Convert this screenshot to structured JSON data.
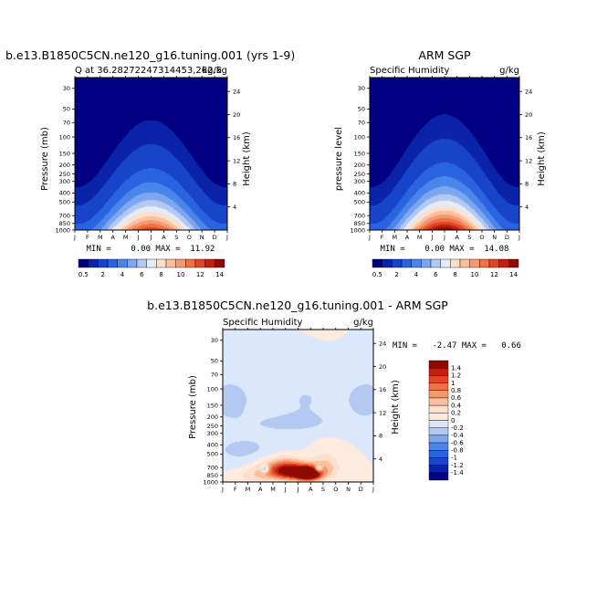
{
  "panels": [
    {
      "left_title": "b.e13.B1850C5CN.ne120_g16.tuning.001 (yrs 1-9)",
      "center_title": "",
      "sub_left": "Q at 36.28272247314453,262.5",
      "sub_right": "kg/kg",
      "y_label": "Pressure (mb)",
      "y2_label": "Height (km)",
      "minmax": "MIN =    0.00 MAX =  11.92"
    },
    {
      "left_title": "",
      "center_title": "ARM SGP",
      "sub_left": "Specific Humidity",
      "sub_right": "g/kg",
      "y_label": "pressure level",
      "y2_label": "Height (km)",
      "minmax": "MIN =    0.00 MAX =  14.08"
    },
    {
      "left_title": "",
      "center_title": "b.e13.B1850C5CN.ne120_g16.tuning.001 - ARM SGP",
      "sub_left": "Specific Humidity",
      "sub_right": "g/kg",
      "y_label": "Pressure (mb)",
      "y2_label": "Height (km)",
      "minmax": "MIN =   -2.47 MAX =   0.66"
    }
  ],
  "colorbar_top": {
    "labels": [
      "0.5",
      "2",
      "4",
      "6",
      "8",
      "10",
      "12",
      "14"
    ],
    "colors": [
      "#000080",
      "#0a23a8",
      "#1744c8",
      "#2a63e0",
      "#4a86ea",
      "#7ea6f0",
      "#b3c9f2",
      "#e4ecf7",
      "#fde0cc",
      "#fbbf9c",
      "#f59a70",
      "#ee7148",
      "#e24526",
      "#c2200d",
      "#8e0b04"
    ]
  },
  "colorbar_diff": {
    "labels": [
      "1.4",
      "1.2",
      "1",
      "0.8",
      "0.6",
      "0.4",
      "0.2",
      "0",
      "-0.2",
      "-0.4",
      "-0.6",
      "-0.8",
      "-1",
      "-1.2",
      "-1.4"
    ],
    "colors": [
      "#8e0b04",
      "#c2200d",
      "#e24526",
      "#ee7148",
      "#f59a70",
      "#fbbf9c",
      "#fde0cc",
      "#fdebdd",
      "#dbe8fb",
      "#b3c9f2",
      "#7ea6f0",
      "#4a86ea",
      "#2a63e0",
      "#1744c8",
      "#0a23a8",
      "#000080"
    ]
  },
  "chart_data": [
    {
      "type": "heatmap",
      "title": "b.e13.B1850C5CN.ne120_g16.tuning.001 (yrs 1-9)",
      "subtitle": "Q at 36.28272247314453,262.5",
      "units": "kg/kg",
      "x": [
        "J",
        "F",
        "M",
        "A",
        "M",
        "J",
        "J",
        "A",
        "S",
        "O",
        "N",
        "D",
        "J"
      ],
      "y_pressure_ticks": [
        30,
        50,
        70,
        100,
        150,
        200,
        250,
        300,
        400,
        500,
        700,
        850,
        1000
      ],
      "y_height_ticks": [
        4,
        8,
        12,
        16,
        20,
        24
      ],
      "ylabel": "Pressure (mb)",
      "y2label": "Height (km)",
      "min": 0.0,
      "max": 11.92,
      "levels": [
        0.5,
        1,
        2,
        3,
        4,
        5,
        6,
        7,
        8,
        9,
        10,
        11,
        12,
        13,
        14
      ]
    },
    {
      "type": "heatmap",
      "title": "ARM SGP",
      "subtitle": "Specific Humidity",
      "units": "g/kg",
      "x": [
        "J",
        "F",
        "M",
        "A",
        "M",
        "J",
        "J",
        "A",
        "S",
        "O",
        "N",
        "D",
        "J"
      ],
      "y_pressure_ticks": [
        30,
        50,
        70,
        100,
        150,
        200,
        250,
        300,
        400,
        500,
        700,
        850,
        1000
      ],
      "y_height_ticks": [
        4,
        8,
        12,
        16,
        20,
        24
      ],
      "ylabel": "pressure level",
      "y2label": "Height (km)",
      "min": 0.0,
      "max": 14.08,
      "levels": [
        0.5,
        1,
        2,
        3,
        4,
        5,
        6,
        7,
        8,
        9,
        10,
        11,
        12,
        13,
        14
      ]
    },
    {
      "type": "heatmap",
      "title": "b.e13.B1850C5CN.ne120_g16.tuning.001 - ARM SGP",
      "subtitle": "Specific Humidity",
      "units": "g/kg",
      "x": [
        "J",
        "F",
        "M",
        "A",
        "M",
        "J",
        "J",
        "A",
        "S",
        "O",
        "N",
        "D",
        "J"
      ],
      "y_pressure_ticks": [
        30,
        50,
        70,
        100,
        150,
        200,
        250,
        300,
        400,
        500,
        700,
        850,
        1000
      ],
      "y_height_ticks": [
        4,
        8,
        12,
        16,
        20,
        24
      ],
      "ylabel": "Pressure (mb)",
      "y2label": "Height (km)",
      "min": -2.47,
      "max": 0.66,
      "levels": [
        -1.4,
        -1.2,
        -1,
        -0.8,
        -0.6,
        -0.4,
        -0.2,
        0,
        0.2,
        0.4,
        0.6,
        0.8,
        1,
        1.2,
        1.4
      ]
    }
  ]
}
